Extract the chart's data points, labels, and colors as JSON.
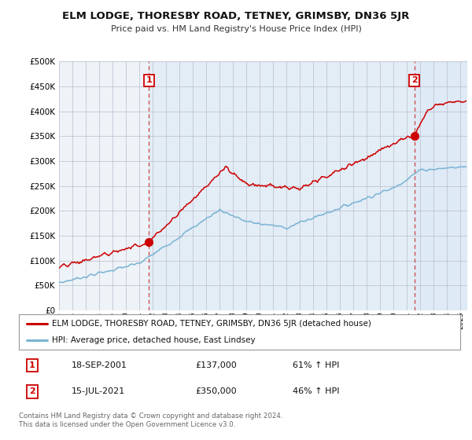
{
  "title": "ELM LODGE, THORESBY ROAD, TETNEY, GRIMSBY, DN36 5JR",
  "subtitle": "Price paid vs. HM Land Registry's House Price Index (HPI)",
  "ylim": [
    0,
    500000
  ],
  "xlim_start": 1995.0,
  "xlim_end": 2025.5,
  "xticks": [
    1995,
    1996,
    1997,
    1998,
    1999,
    2000,
    2001,
    2002,
    2003,
    2004,
    2005,
    2006,
    2007,
    2008,
    2009,
    2010,
    2011,
    2012,
    2013,
    2014,
    2015,
    2016,
    2017,
    2018,
    2019,
    2020,
    2021,
    2022,
    2023,
    2024,
    2025
  ],
  "hpi_color": "#7ab3d4",
  "property_color": "#cc0000",
  "sale1_x": 2001.72,
  "sale1_y": 137000,
  "sale2_x": 2021.54,
  "sale2_y": 350000,
  "vline1_x": 2001.72,
  "vline2_x": 2021.54,
  "shade_color": "#ddeeff",
  "legend_property": "ELM LODGE, THORESBY ROAD, TETNEY, GRIMSBY, DN36 5JR (detached house)",
  "legend_hpi": "HPI: Average price, detached house, East Lindsey",
  "note1_label": "1",
  "note1_date": "18-SEP-2001",
  "note1_price": "£137,000",
  "note1_hpi": "61% ↑ HPI",
  "note2_label": "2",
  "note2_date": "15-JUL-2021",
  "note2_price": "£350,000",
  "note2_hpi": "46% ↑ HPI",
  "footer": "Contains HM Land Registry data © Crown copyright and database right 2024.\nThis data is licensed under the Open Government Licence v3.0.",
  "background_color": "#ffffff",
  "grid_color": "#cccccc",
  "chart_bg": "#f0f4f8"
}
